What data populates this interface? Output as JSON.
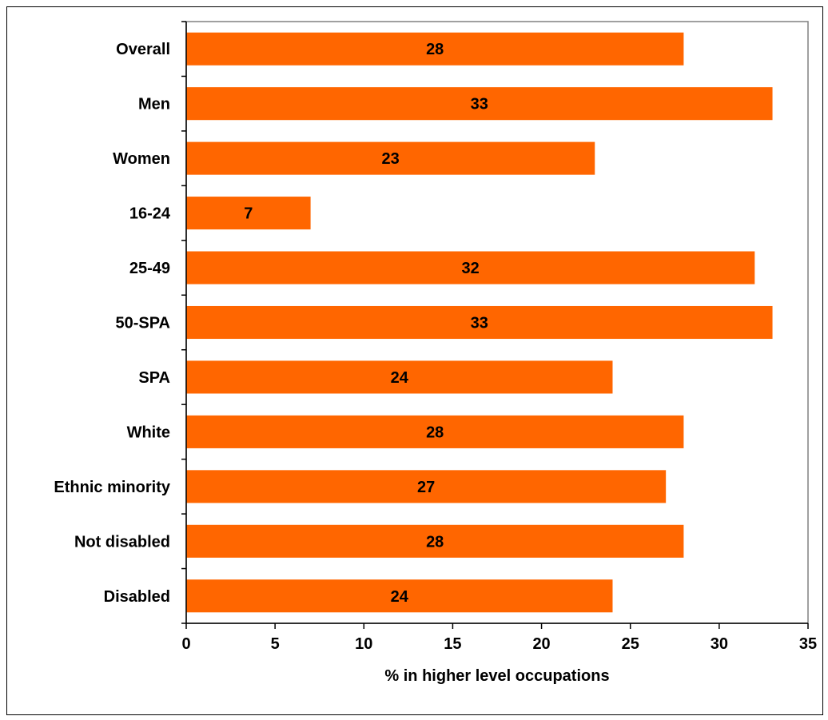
{
  "chart_data": {
    "type": "bar",
    "orientation": "horizontal",
    "title": "",
    "xlabel": "% in higher level occupations",
    "ylabel": "",
    "categories": [
      "Overall",
      "Men",
      "Women",
      "16-24",
      "25-49",
      "50-SPA",
      "SPA",
      "White",
      "Ethnic minority",
      "Not disabled",
      "Disabled"
    ],
    "values": [
      28,
      33,
      23,
      7,
      32,
      33,
      24,
      28,
      27,
      28,
      24
    ],
    "xlim": [
      0,
      35
    ],
    "xticks": [
      0,
      5,
      10,
      15,
      20,
      25,
      30,
      35
    ],
    "grid": false,
    "legend": "none",
    "bar_color": "#FF6600",
    "data_labels": true
  }
}
